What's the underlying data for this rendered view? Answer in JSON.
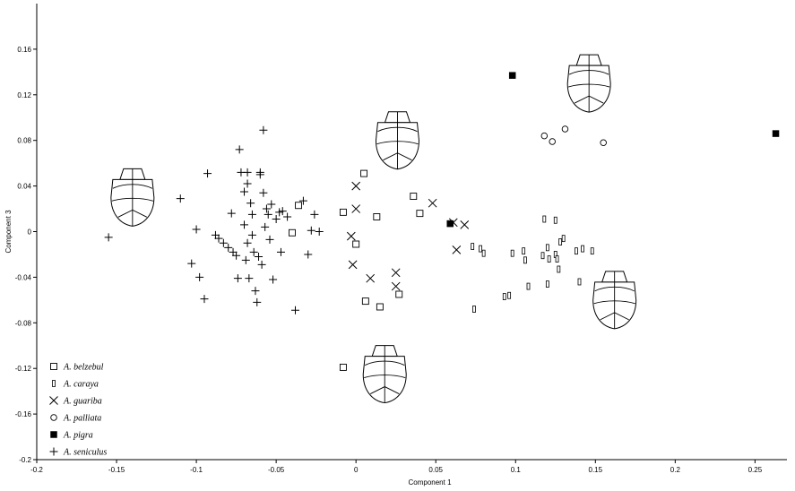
{
  "chart_data": {
    "type": "scatter",
    "title": "",
    "xlabel": "Component 1",
    "ylabel": "Component 3",
    "xlim": [
      -0.2,
      0.27
    ],
    "ylim": [
      -0.2,
      0.2
    ],
    "xticks": [
      "-0.2",
      "-0.15",
      "-0.1",
      "-0.05",
      "0",
      "0.05",
      "0.1",
      "0.15",
      "0.2",
      "0.25"
    ],
    "yticks": [
      "-0.2",
      "-0.16",
      "-0.12",
      "-0.08",
      "-0.04",
      "0",
      "0.04",
      "0.08",
      "0.12",
      "0.16"
    ],
    "grid": false,
    "legend_position": "bottom-left",
    "series": [
      {
        "name": "A. belzebul",
        "marker": "open-square",
        "points": [
          [
            0.005,
            0.051
          ],
          [
            0.013,
            0.013
          ],
          [
            0.0,
            -0.011
          ],
          [
            -0.008,
            0.017
          ],
          [
            -0.036,
            0.023
          ],
          [
            -0.04,
            -0.001
          ],
          [
            0.036,
            0.031
          ],
          [
            0.04,
            0.016
          ],
          [
            0.006,
            -0.061
          ],
          [
            0.015,
            -0.066
          ],
          [
            0.027,
            -0.055
          ],
          [
            -0.008,
            -0.119
          ]
        ]
      },
      {
        "name": "A. caraya",
        "marker": "thin-rectangle",
        "points": [
          [
            0.073,
            -0.013
          ],
          [
            0.078,
            -0.015
          ],
          [
            0.08,
            -0.019
          ],
          [
            0.074,
            -0.068
          ],
          [
            0.093,
            -0.057
          ],
          [
            0.096,
            -0.056
          ],
          [
            0.098,
            -0.019
          ],
          [
            0.105,
            -0.017
          ],
          [
            0.106,
            -0.025
          ],
          [
            0.108,
            -0.048
          ],
          [
            0.117,
            -0.021
          ],
          [
            0.118,
            0.011
          ],
          [
            0.12,
            -0.046
          ],
          [
            0.12,
            -0.014
          ],
          [
            0.121,
            -0.024
          ],
          [
            0.125,
            0.01
          ],
          [
            0.125,
            -0.02
          ],
          [
            0.126,
            -0.024
          ],
          [
            0.127,
            -0.033
          ],
          [
            0.128,
            -0.009
          ],
          [
            0.13,
            -0.006
          ],
          [
            0.138,
            -0.017
          ],
          [
            0.14,
            -0.044
          ],
          [
            0.142,
            -0.015
          ],
          [
            0.148,
            -0.017
          ]
        ]
      },
      {
        "name": "A. guariba",
        "marker": "x",
        "points": [
          [
            0.0,
            0.04
          ],
          [
            0.0,
            0.02
          ],
          [
            -0.003,
            -0.004
          ],
          [
            -0.002,
            -0.029
          ],
          [
            0.009,
            -0.041
          ],
          [
            0.025,
            -0.036
          ],
          [
            0.025,
            -0.048
          ],
          [
            0.048,
            0.025
          ],
          [
            0.061,
            0.008
          ],
          [
            0.063,
            -0.016
          ],
          [
            0.068,
            0.006
          ]
        ]
      },
      {
        "name": "A. palliata",
        "marker": "open-circle",
        "points": [
          [
            0.118,
            0.084
          ],
          [
            0.123,
            0.079
          ],
          [
            0.131,
            0.09
          ],
          [
            0.155,
            0.078
          ]
        ]
      },
      {
        "name": "A. pigra",
        "marker": "filled-square",
        "points": [
          [
            0.098,
            0.137
          ],
          [
            0.059,
            0.007
          ],
          [
            0.263,
            0.086
          ]
        ]
      },
      {
        "name": "A. seniculus",
        "marker": "plus",
        "points": [
          [
            -0.155,
            -0.005
          ],
          [
            -0.11,
            0.029
          ],
          [
            -0.1,
            0.002
          ],
          [
            -0.103,
            -0.028
          ],
          [
            -0.098,
            -0.04
          ],
          [
            -0.095,
            -0.059
          ],
          [
            -0.093,
            0.051
          ],
          [
            -0.088,
            -0.003
          ],
          [
            -0.086,
            -0.006
          ],
          [
            -0.083,
            -0.01
          ],
          [
            -0.08,
            -0.014
          ],
          [
            -0.078,
            0.016
          ],
          [
            -0.077,
            -0.018
          ],
          [
            -0.075,
            -0.021
          ],
          [
            -0.073,
            0.072
          ],
          [
            -0.072,
            0.052
          ],
          [
            -0.07,
            0.035
          ],
          [
            -0.07,
            0.006
          ],
          [
            -0.069,
            -0.025
          ],
          [
            -0.068,
            0.042
          ],
          [
            -0.067,
            -0.041
          ],
          [
            -0.066,
            0.025
          ],
          [
            -0.065,
            0.015
          ],
          [
            -0.065,
            -0.003
          ],
          [
            -0.064,
            -0.018
          ],
          [
            -0.063,
            -0.052
          ],
          [
            -0.062,
            -0.062
          ],
          [
            -0.061,
            -0.022
          ],
          [
            -0.06,
            0.05
          ],
          [
            -0.059,
            -0.029
          ],
          [
            -0.058,
            0.034
          ],
          [
            -0.057,
            0.004
          ],
          [
            -0.056,
            0.02
          ],
          [
            -0.055,
            0.015
          ],
          [
            -0.054,
            -0.007
          ],
          [
            -0.053,
            0.024
          ],
          [
            -0.052,
            -0.042
          ],
          [
            -0.05,
            0.011
          ],
          [
            -0.048,
            0.017
          ],
          [
            -0.046,
            0.018
          ],
          [
            -0.058,
            0.089
          ],
          [
            -0.047,
            -0.018
          ],
          [
            -0.043,
            0.013
          ],
          [
            -0.038,
            -0.069
          ],
          [
            -0.033,
            0.027
          ],
          [
            -0.03,
            -0.02
          ],
          [
            -0.028,
            0.001
          ],
          [
            -0.026,
            0.015
          ],
          [
            -0.023,
            0.0
          ],
          [
            -0.068,
            -0.01
          ],
          [
            -0.074,
            -0.041
          ],
          [
            -0.06,
            0.052
          ],
          [
            -0.068,
            0.052
          ]
        ]
      }
    ],
    "shape_icons": [
      {
        "id": "skull-outline-1",
        "x": -0.14,
        "y": 0.03
      },
      {
        "id": "skull-outline-2",
        "x": 0.026,
        "y": 0.08
      },
      {
        "id": "skull-outline-3",
        "x": 0.146,
        "y": 0.13
      },
      {
        "id": "skull-outline-4",
        "x": 0.162,
        "y": -0.06
      },
      {
        "id": "skull-outline-5",
        "x": 0.018,
        "y": -0.125
      }
    ]
  }
}
